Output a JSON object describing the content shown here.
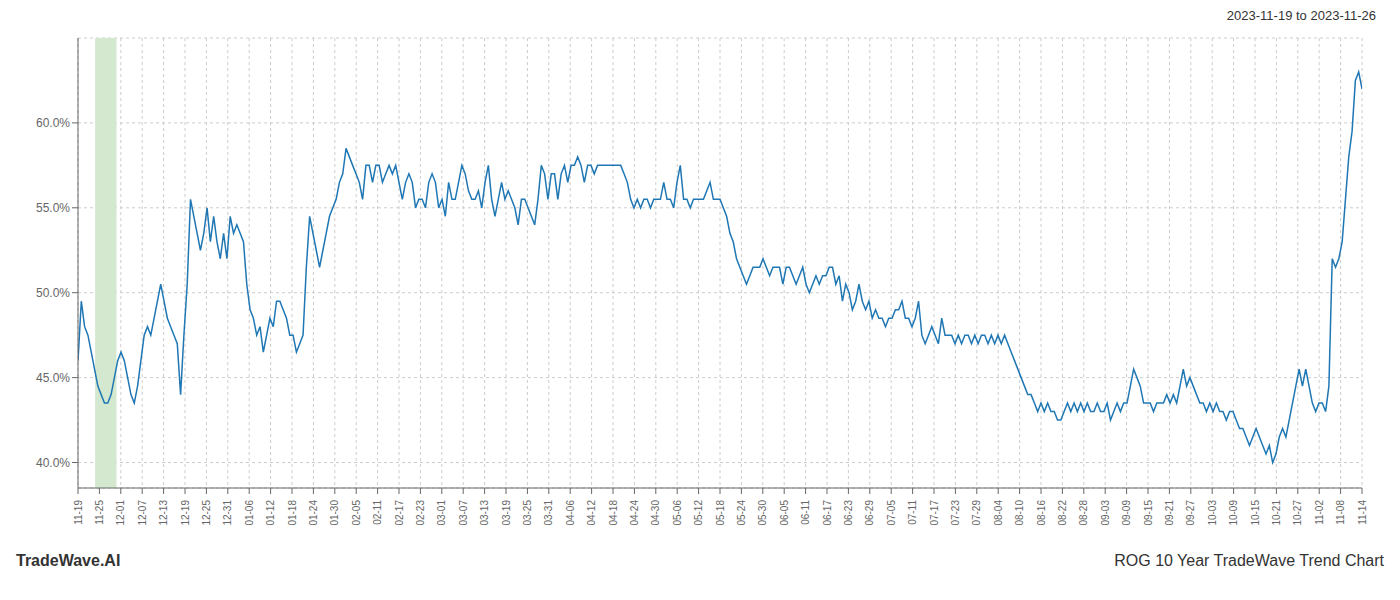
{
  "chart_data": {
    "type": "line",
    "title": "2023-11-19 to 2023-11-26",
    "annotations": [
      "TradeWave.AI",
      "ROG 10 Year TradeWave Trend Chart"
    ],
    "color": "#1f77b4",
    "grid": true,
    "highlight": {
      "start": 0.8,
      "end": 1.8,
      "color": "#d4e8d0"
    },
    "xlim": [
      0,
      60
    ],
    "xticks": [
      {
        "value": 0,
        "label": "11-19"
      },
      {
        "value": 1,
        "label": "11-25"
      },
      {
        "value": 2,
        "label": "12-01"
      },
      {
        "value": 3,
        "label": "12-07"
      },
      {
        "value": 4,
        "label": "12-13"
      },
      {
        "value": 5,
        "label": "12-19"
      },
      {
        "value": 6,
        "label": "12-25"
      },
      {
        "value": 7,
        "label": "12-31"
      },
      {
        "value": 8,
        "label": "01-06"
      },
      {
        "value": 9,
        "label": "01-12"
      },
      {
        "value": 10,
        "label": "01-18"
      },
      {
        "value": 11,
        "label": "01-24"
      },
      {
        "value": 12,
        "label": "01-30"
      },
      {
        "value": 13,
        "label": "02-05"
      },
      {
        "value": 14,
        "label": "02-11"
      },
      {
        "value": 15,
        "label": "02-17"
      },
      {
        "value": 16,
        "label": "02-23"
      },
      {
        "value": 17,
        "label": "03-01"
      },
      {
        "value": 18,
        "label": "03-07"
      },
      {
        "value": 19,
        "label": "03-13"
      },
      {
        "value": 20,
        "label": "03-19"
      },
      {
        "value": 21,
        "label": "03-25"
      },
      {
        "value": 22,
        "label": "03-31"
      },
      {
        "value": 23,
        "label": "04-06"
      },
      {
        "value": 24,
        "label": "04-12"
      },
      {
        "value": 25,
        "label": "04-18"
      },
      {
        "value": 26,
        "label": "04-24"
      },
      {
        "value": 27,
        "label": "04-30"
      },
      {
        "value": 28,
        "label": "05-06"
      },
      {
        "value": 29,
        "label": "05-12"
      },
      {
        "value": 30,
        "label": "05-18"
      },
      {
        "value": 31,
        "label": "05-24"
      },
      {
        "value": 32,
        "label": "05-30"
      },
      {
        "value": 33,
        "label": "06-05"
      },
      {
        "value": 34,
        "label": "06-11"
      },
      {
        "value": 35,
        "label": "06-17"
      },
      {
        "value": 36,
        "label": "06-23"
      },
      {
        "value": 37,
        "label": "06-29"
      },
      {
        "value": 38,
        "label": "07-05"
      },
      {
        "value": 39,
        "label": "07-11"
      },
      {
        "value": 40,
        "label": "07-17"
      },
      {
        "value": 41,
        "label": "07-23"
      },
      {
        "value": 42,
        "label": "07-29"
      },
      {
        "value": 43,
        "label": "08-04"
      },
      {
        "value": 44,
        "label": "08-10"
      },
      {
        "value": 45,
        "label": "08-16"
      },
      {
        "value": 46,
        "label": "08-22"
      },
      {
        "value": 47,
        "label": "08-28"
      },
      {
        "value": 48,
        "label": "09-03"
      },
      {
        "value": 49,
        "label": "09-09"
      },
      {
        "value": 50,
        "label": "09-15"
      },
      {
        "value": 51,
        "label": "09-21"
      },
      {
        "value": 52,
        "label": "09-27"
      },
      {
        "value": 53,
        "label": "10-03"
      },
      {
        "value": 54,
        "label": "10-09"
      },
      {
        "value": 55,
        "label": "10-15"
      },
      {
        "value": 56,
        "label": "10-21"
      },
      {
        "value": 57,
        "label": "10-27"
      },
      {
        "value": 58,
        "label": "11-02"
      },
      {
        "value": 59,
        "label": "11-08"
      },
      {
        "value": 60,
        "label": "11-14"
      }
    ],
    "ylim": [
      38.5,
      65.0
    ],
    "yticks": [
      {
        "value": 40.0,
        "label": "40.0%"
      },
      {
        "value": 45.0,
        "label": "45.0%"
      },
      {
        "value": 50.0,
        "label": "50.0%"
      },
      {
        "value": 55.0,
        "label": "55.0%"
      },
      {
        "value": 60.0,
        "label": "60.0%"
      }
    ],
    "values": [
      46.0,
      49.5,
      48.0,
      47.5,
      46.5,
      45.5,
      44.5,
      44.0,
      43.5,
      43.5,
      44.0,
      45.0,
      46.0,
      46.5,
      46.0,
      45.0,
      44.0,
      43.5,
      44.5,
      46.0,
      47.5,
      48.0,
      47.5,
      48.5,
      49.5,
      50.5,
      49.5,
      48.5,
      48.0,
      47.5,
      47.0,
      44.0,
      47.5,
      50.5,
      55.5,
      54.5,
      53.5,
      52.5,
      53.5,
      55.0,
      53.0,
      54.5,
      53.0,
      52.0,
      53.5,
      52.0,
      54.5,
      53.5,
      54.0,
      53.5,
      53.0,
      50.5,
      49.0,
      48.5,
      47.5,
      48.0,
      46.5,
      47.5,
      48.5,
      48.0,
      49.5,
      49.5,
      49.0,
      48.5,
      47.5,
      47.5,
      46.5,
      47.0,
      47.5,
      51.5,
      54.5,
      53.5,
      52.5,
      51.5,
      52.5,
      53.5,
      54.5,
      55.0,
      55.5,
      56.5,
      57.0,
      58.5,
      58.0,
      57.5,
      57.0,
      56.5,
      55.5,
      57.5,
      57.5,
      56.5,
      57.5,
      57.5,
      56.5,
      57.0,
      57.5,
      57.0,
      57.5,
      56.5,
      55.5,
      56.5,
      57.0,
      56.5,
      55.0,
      55.5,
      55.5,
      55.0,
      56.5,
      57.0,
      56.5,
      55.0,
      55.5,
      54.5,
      56.5,
      55.5,
      55.5,
      56.5,
      57.5,
      57.0,
      56.0,
      55.5,
      55.5,
      56.0,
      55.0,
      56.5,
      57.5,
      55.5,
      54.5,
      55.5,
      56.5,
      55.5,
      56.0,
      55.5,
      55.0,
      54.0,
      55.5,
      55.5,
      55.0,
      54.5,
      54.0,
      55.5,
      57.5,
      57.0,
      55.5,
      57.0,
      57.0,
      55.5,
      57.0,
      57.5,
      56.5,
      57.5,
      57.5,
      58.0,
      57.5,
      56.5,
      57.5,
      57.5,
      57.0,
      57.5,
      57.5,
      57.5,
      57.5,
      57.5,
      57.5,
      57.5,
      57.5,
      57.0,
      56.5,
      55.5,
      55.0,
      55.5,
      55.0,
      55.5,
      55.5,
      55.0,
      55.5,
      55.5,
      55.5,
      56.5,
      55.5,
      55.5,
      55.0,
      56.5,
      57.5,
      55.5,
      55.5,
      55.0,
      55.5,
      55.5,
      55.5,
      55.5,
      56.0,
      56.5,
      55.5,
      55.5,
      55.5,
      55.0,
      54.5,
      53.5,
      53.0,
      52.0,
      51.5,
      51.0,
      50.5,
      51.0,
      51.5,
      51.5,
      51.5,
      52.0,
      51.5,
      51.0,
      51.5,
      51.5,
      51.5,
      50.5,
      51.5,
      51.5,
      51.0,
      50.5,
      51.0,
      51.5,
      50.5,
      50.0,
      50.5,
      51.0,
      50.5,
      51.0,
      51.0,
      51.5,
      51.5,
      50.5,
      51.0,
      49.5,
      50.5,
      50.0,
      49.0,
      49.5,
      50.5,
      49.5,
      49.0,
      49.5,
      48.5,
      49.0,
      48.5,
      48.5,
      48.0,
      48.5,
      48.5,
      49.0,
      49.0,
      49.5,
      48.5,
      48.5,
      48.0,
      48.5,
      49.5,
      47.5,
      47.0,
      47.5,
      48.0,
      47.5,
      47.0,
      48.5,
      47.5,
      47.5,
      47.5,
      47.0,
      47.5,
      47.0,
      47.5,
      47.5,
      47.0,
      47.5,
      47.0,
      47.5,
      47.5,
      47.0,
      47.5,
      47.0,
      47.5,
      47.0,
      47.5,
      47.0,
      46.5,
      46.0,
      45.5,
      45.0,
      44.5,
      44.0,
      44.0,
      43.5,
      43.0,
      43.5,
      43.0,
      43.5,
      43.0,
      43.0,
      42.5,
      42.5,
      43.0,
      43.5,
      43.0,
      43.5,
      43.0,
      43.5,
      43.0,
      43.5,
      43.0,
      43.0,
      43.5,
      43.0,
      43.0,
      43.5,
      42.5,
      43.0,
      43.5,
      43.0,
      43.5,
      43.5,
      44.5,
      45.5,
      45.0,
      44.5,
      43.5,
      43.5,
      43.5,
      43.0,
      43.5,
      43.5,
      43.5,
      44.0,
      43.5,
      44.0,
      43.5,
      44.5,
      45.5,
      44.5,
      45.0,
      44.5,
      44.0,
      43.5,
      43.5,
      43.0,
      43.5,
      43.0,
      43.5,
      43.0,
      43.0,
      42.5,
      43.0,
      43.0,
      42.5,
      42.0,
      42.0,
      41.5,
      41.0,
      41.5,
      42.0,
      41.5,
      41.0,
      40.5,
      41.0,
      40.0,
      40.5,
      41.5,
      42.0,
      41.5,
      42.5,
      43.5,
      44.5,
      45.5,
      44.5,
      45.5,
      44.5,
      43.5,
      43.0,
      43.5,
      43.5,
      43.0,
      44.5,
      52.0,
      51.5,
      52.0,
      53.0,
      55.5,
      58.0,
      59.5,
      62.5,
      63.0,
      62.0
    ]
  }
}
